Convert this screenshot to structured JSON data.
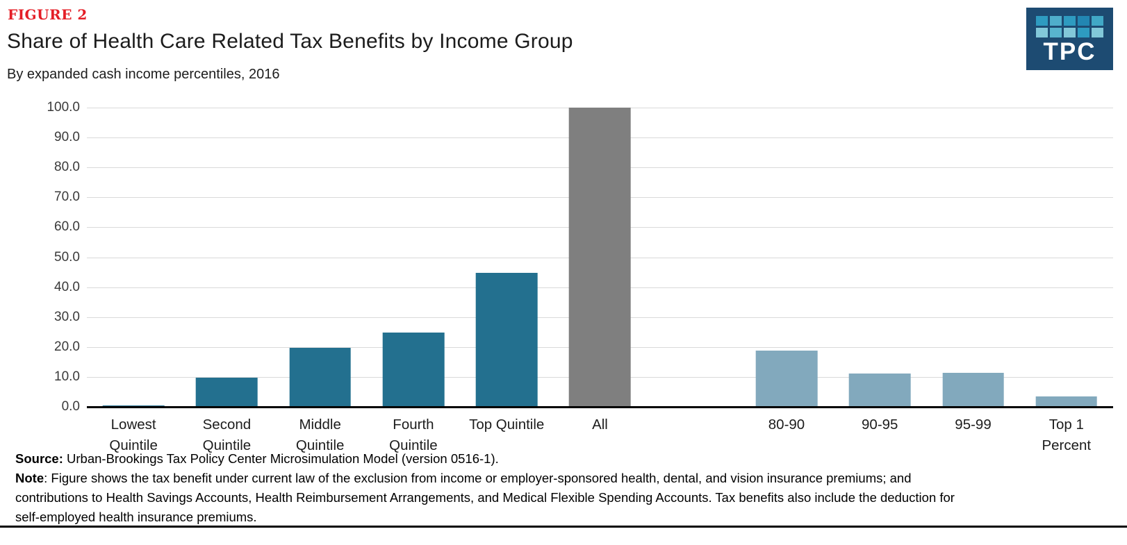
{
  "figure": {
    "label": "FIGURE 2"
  },
  "header": {
    "title": "Share of Health Care Related Tax Benefits by Income Group",
    "subtitle": "By expanded cash income percentiles, 2016"
  },
  "logo": {
    "text": "TPC",
    "background_color": "#1D4B72",
    "square_colors_row1": [
      "#2E9BC0",
      "#4FAECB",
      "#2E9BC0",
      "#2286B2",
      "#41A8C6"
    ],
    "square_colors_row2": [
      "#82C8D9",
      "#58B4CE",
      "#82C8D9",
      "#2E9BC0",
      "#82C8D9"
    ]
  },
  "chart_data": {
    "type": "bar",
    "title": "Share of Health Care Related Tax Benefits by Income Group",
    "subtitle": "By expanded cash income percentiles, 2016",
    "ylim": [
      0,
      100
    ],
    "ytick_step": 10,
    "ytick_labels": [
      "100.0",
      "90.0",
      "80.0",
      "70.0",
      "60.0",
      "50.0",
      "40.0",
      "30.0",
      "20.0",
      "10.0",
      "0.0"
    ],
    "grid": true,
    "legend": "none",
    "bar_colors": {
      "quintile": "#23708F",
      "all": "#7F7F7F",
      "percentile": "#82A9BD"
    },
    "bars": [
      {
        "label": "Lowest Quintile",
        "label_lines": [
          "Lowest",
          "Quintile"
        ],
        "value": 0.5,
        "group": "quintile",
        "spacer_after": false
      },
      {
        "label": "Second Quintile",
        "label_lines": [
          "Second",
          "Quintile"
        ],
        "value": 9.8,
        "group": "quintile",
        "spacer_after": false
      },
      {
        "label": "Middle Quintile",
        "label_lines": [
          "Middle",
          "Quintile"
        ],
        "value": 19.8,
        "group": "quintile",
        "spacer_after": false
      },
      {
        "label": "Fourth Quintile",
        "label_lines": [
          "Fourth",
          "Quintile"
        ],
        "value": 24.9,
        "group": "quintile",
        "spacer_after": false
      },
      {
        "label": "Top Quintile",
        "label_lines": [
          "Top Quintile"
        ],
        "value": 44.8,
        "group": "quintile",
        "spacer_after": false
      },
      {
        "label": "All",
        "label_lines": [
          "All"
        ],
        "value": 100.0,
        "group": "all",
        "spacer_after": true
      },
      {
        "label": "80-90",
        "label_lines": [
          "80-90"
        ],
        "value": 18.9,
        "group": "percentile",
        "spacer_after": false
      },
      {
        "label": "90-95",
        "label_lines": [
          "90-95"
        ],
        "value": 11.2,
        "group": "percentile",
        "spacer_after": false
      },
      {
        "label": "95-99",
        "label_lines": [
          "95-99"
        ],
        "value": 11.4,
        "group": "percentile",
        "spacer_after": false
      },
      {
        "label": "Top 1 Percent",
        "label_lines": [
          "Top 1",
          "Percent"
        ],
        "value": 3.5,
        "group": "percentile",
        "spacer_after": false
      }
    ]
  },
  "footer": {
    "source_label": "Source:",
    "source_text": " Urban-Brookings Tax Policy Center Microsimulation Model (version 0516-1).",
    "note_label": "Note",
    "note_lines": [
      ":  Figure shows the tax benefit under current law of the exclusion from income or employer-sponsored health, dental, and vision insurance premiums; and",
      "contributions to Health Savings Accounts, Health Reimbursement Arrangements, and Medical Flexible Spending Accounts. Tax benefits also include the deduction for",
      "self-employed health insurance premiums."
    ]
  }
}
